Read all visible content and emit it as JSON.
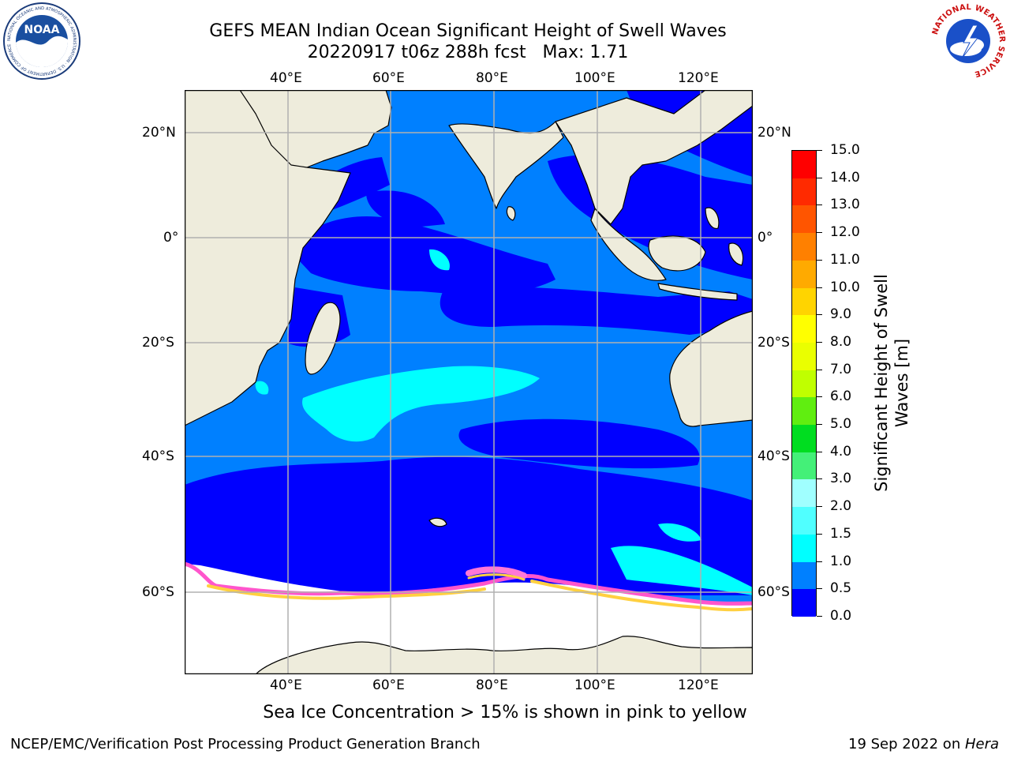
{
  "header": {
    "title_line1": "GEFS MEAN Indian Ocean Significant Height of Swell Waves",
    "title_line2": "20220917 t06z 288h fcst   Max: 1.71"
  },
  "map": {
    "lon_labels": [
      "40°E",
      "60°E",
      "80°E",
      "100°E",
      "120°E"
    ],
    "lat_labels": [
      "20°N",
      "0°",
      "20°S",
      "40°S",
      "60°S"
    ],
    "colors": {
      "land": "#eeecdc",
      "sea_ice": "#ffffff",
      "grid": "#b0b0b0",
      "swell_0_0_5": "#0000ff",
      "swell_0_5_1_0": "#0080ff",
      "swell_1_0_1_5": "#00ffff",
      "ice_pink": "#ff55cc",
      "ice_yellow": "#ffd040"
    }
  },
  "colorbar": {
    "title": "Significant Height of Swell Waves [m]",
    "labels": [
      "15.0",
      "14.0",
      "13.0",
      "12.0",
      "11.0",
      "10.0",
      "9.0",
      "8.0",
      "7.0",
      "6.0",
      "5.0",
      "4.0",
      "3.0",
      "2.0",
      "1.5",
      "1.0",
      "0.5",
      "0.0"
    ],
    "segments": [
      {
        "color": "#ff0000"
      },
      {
        "color": "#ff2a00"
      },
      {
        "color": "#ff5500"
      },
      {
        "color": "#ff8000"
      },
      {
        "color": "#ffaa00"
      },
      {
        "color": "#ffd400"
      },
      {
        "color": "#ffff00"
      },
      {
        "color": "#eaff00"
      },
      {
        "color": "#c0ff00"
      },
      {
        "color": "#60ee10"
      },
      {
        "color": "#00dd20"
      },
      {
        "color": "#44f078"
      },
      {
        "color": "#a0ffff"
      },
      {
        "color": "#50ffff"
      },
      {
        "color": "#00ffff"
      },
      {
        "color": "#0080ff"
      },
      {
        "color": "#0000ff"
      }
    ]
  },
  "footer": {
    "note": "Sea Ice Concentration > 15% is shown in pink to yellow",
    "left": "NCEP/EMC/Verification Post Processing Product Generation Branch",
    "right_prefix": "19 Sep 2022 on ",
    "right_host": "Hera"
  },
  "logos": {
    "left_text": "NOAA",
    "left_ring": "NATIONAL OCEANIC AND ATMOSPHERIC ADMINISTRATION · U.S. DEPARTMENT OF COMMERCE",
    "right_ring": "NATIONAL WEATHER SERVICE"
  }
}
